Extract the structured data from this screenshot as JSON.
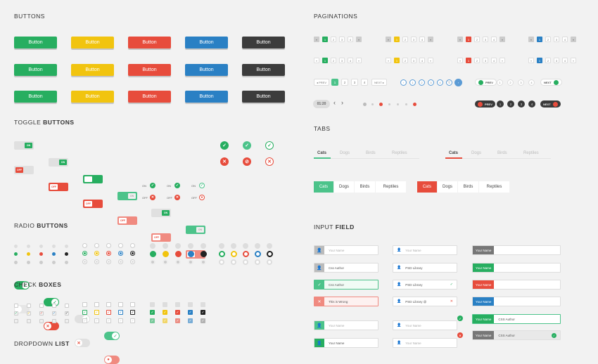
{
  "sections": {
    "buttons": "BUTTONS",
    "paginations": "PAGINATIONS",
    "toggle_a": "TOGGLE ",
    "toggle_b": "BUTTONS",
    "tabs": "TABS",
    "radio_a": "RADIO ",
    "radio_b": "BUTTONS",
    "input_a": "INPUT ",
    "input_b": "FIELD",
    "check_a": "CHECK ",
    "check_b": "BOXES",
    "dropdown_a": "DROPDOWN ",
    "dropdown_b": "LIST"
  },
  "button_label": "Button",
  "button_colors": [
    "#27ae60",
    "#f1c40f",
    "#e74c3c",
    "#2a80c4",
    "#3c3c3c"
  ],
  "pagination": {
    "pages": [
      "1",
      "2",
      "3",
      "4"
    ],
    "prev": "PREV",
    "next": "NEXT",
    "first_label": "FIRST",
    "time": "01:20",
    "ellipsis": "…"
  },
  "toggle": {
    "on": "ON",
    "off": "OFF"
  },
  "tabs": {
    "items": [
      "Cats",
      "Dogs",
      "Birds",
      "Reptiles"
    ]
  },
  "colors": {
    "green": "#27ae60",
    "yellow": "#f1c40f",
    "red": "#e74c3c",
    "blue": "#2a80c4",
    "dark": "#3c3c3c",
    "mint": "#4cc38a"
  },
  "inputs": {
    "your_name": "Your Name",
    "css_author": "Css Author",
    "psd_library": "PSD Library",
    "psd_library_at": "PSD Library @",
    "wrong": "This is Wrong",
    "css_author2": "CSS Author"
  }
}
